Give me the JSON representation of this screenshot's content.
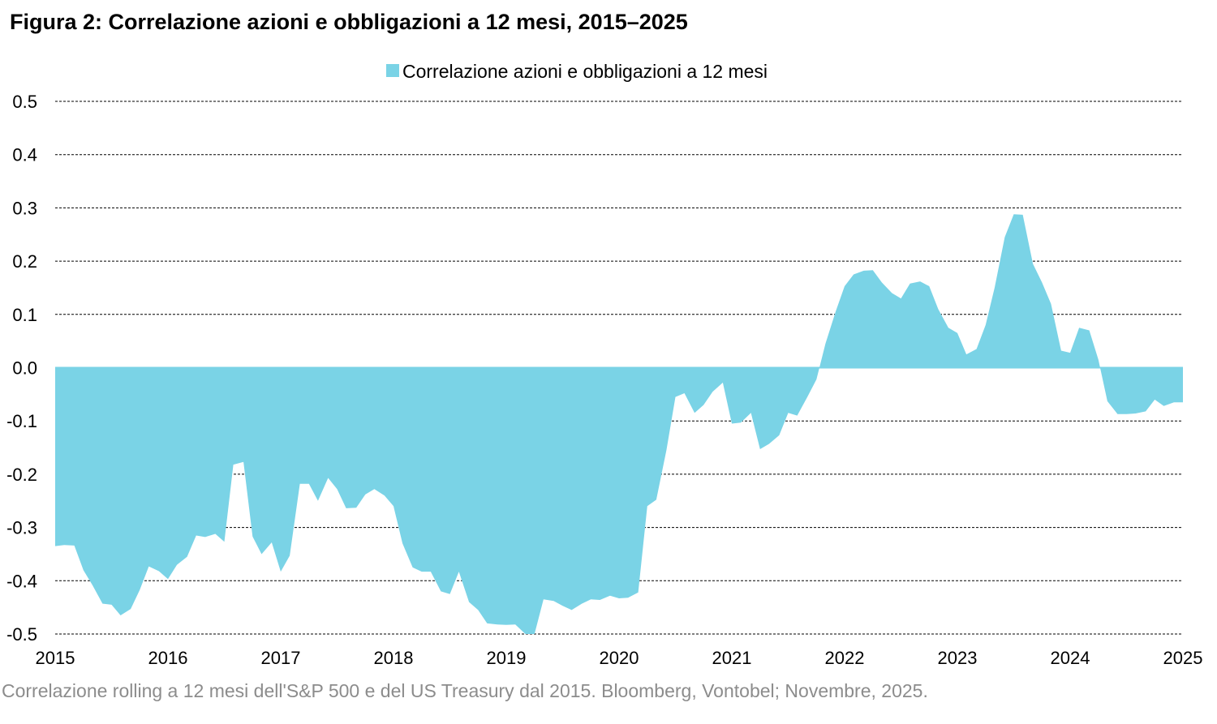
{
  "title": "Figura 2: Correlazione azioni e obbligazioni a 12 mesi, 2015–2025",
  "source": "Correlazione rolling a 12 mesi dell'S&P 500 e del US Treasury dal 2015. Bloomberg, Vontobel; Novembre, 2025.",
  "colors": {
    "area": "#7ad3e6",
    "grid": "#000000"
  },
  "chart_data": {
    "type": "area",
    "title": "Figura 2: Correlazione azioni e obbligazioni a 12 mesi, 2015–2025",
    "xlabel": "",
    "ylabel": "",
    "xlim": [
      2015,
      2025
    ],
    "ylim": [
      -0.5,
      0.5
    ],
    "x_ticks": [
      "2015",
      "2016",
      "2017",
      "2018",
      "2019",
      "2020",
      "2021",
      "2022",
      "2023",
      "2024",
      "2025"
    ],
    "y_ticks": [
      "0.5",
      "0.4",
      "0.3",
      "0.2",
      "0.1",
      "0.0",
      "-0.1",
      "-0.2",
      "-0.3",
      "-0.4",
      "-0.5"
    ],
    "grid": "horizontal dashed",
    "legend_position": "top-center",
    "series": [
      {
        "name": "Correlazione azioni e obbligazioni a 12 mesi",
        "x": [
          2015.0,
          2015.08,
          2015.17,
          2015.25,
          2015.33,
          2015.42,
          2015.5,
          2015.58,
          2015.67,
          2015.75,
          2015.83,
          2015.92,
          2016.0,
          2016.08,
          2016.17,
          2016.25,
          2016.33,
          2016.42,
          2016.5,
          2016.58,
          2016.67,
          2016.75,
          2016.83,
          2016.92,
          2017.0,
          2017.08,
          2017.17,
          2017.25,
          2017.33,
          2017.42,
          2017.5,
          2017.58,
          2017.67,
          2017.75,
          2017.83,
          2017.92,
          2018.0,
          2018.08,
          2018.17,
          2018.25,
          2018.33,
          2018.42,
          2018.5,
          2018.58,
          2018.67,
          2018.75,
          2018.83,
          2018.92,
          2019.0,
          2019.08,
          2019.17,
          2019.25,
          2019.33,
          2019.42,
          2019.5,
          2019.58,
          2019.67,
          2019.75,
          2019.83,
          2019.92,
          2020.0,
          2020.08,
          2020.17,
          2020.25,
          2020.33,
          2020.42,
          2020.5,
          2020.58,
          2020.67,
          2020.75,
          2020.83,
          2020.92,
          2021.0,
          2021.08,
          2021.17,
          2021.25,
          2021.33,
          2021.42,
          2021.5,
          2021.58,
          2021.67,
          2021.75,
          2021.83,
          2021.92,
          2022.0,
          2022.08,
          2022.17,
          2022.25,
          2022.33,
          2022.42,
          2022.5,
          2022.58,
          2022.67,
          2022.75,
          2022.83,
          2022.92,
          2023.0,
          2023.08,
          2023.17,
          2023.25,
          2023.33,
          2023.42,
          2023.5,
          2023.58,
          2023.67,
          2023.75,
          2023.83,
          2023.92,
          2024.0,
          2024.08,
          2024.17,
          2024.25,
          2024.33,
          2024.42,
          2024.5,
          2024.58,
          2024.67,
          2024.75,
          2024.83,
          2024.92,
          2025.0
        ],
        "values": [
          -0.335,
          -0.333,
          -0.334,
          -0.38,
          -0.408,
          -0.443,
          -0.445,
          -0.465,
          -0.453,
          -0.417,
          -0.373,
          -0.382,
          -0.397,
          -0.37,
          -0.355,
          -0.315,
          -0.318,
          -0.312,
          -0.327,
          -0.182,
          -0.177,
          -0.317,
          -0.35,
          -0.328,
          -0.383,
          -0.353,
          -0.218,
          -0.218,
          -0.25,
          -0.207,
          -0.228,
          -0.264,
          -0.263,
          -0.238,
          -0.228,
          -0.24,
          -0.26,
          -0.33,
          -0.375,
          -0.383,
          -0.383,
          -0.42,
          -0.425,
          -0.383,
          -0.44,
          -0.455,
          -0.48,
          -0.482,
          -0.483,
          -0.482,
          -0.505,
          -0.502,
          -0.435,
          -0.438,
          -0.447,
          -0.455,
          -0.443,
          -0.435,
          -0.436,
          -0.428,
          -0.433,
          -0.432,
          -0.422,
          -0.26,
          -0.248,
          -0.155,
          -0.055,
          -0.048,
          -0.085,
          -0.07,
          -0.045,
          -0.028,
          -0.105,
          -0.103,
          -0.085,
          -0.153,
          -0.143,
          -0.127,
          -0.085,
          -0.09,
          -0.055,
          -0.022,
          0.045,
          0.105,
          0.153,
          0.175,
          0.182,
          0.183,
          0.16,
          0.14,
          0.13,
          0.158,
          0.162,
          0.153,
          0.11,
          0.075,
          0.065,
          0.025,
          0.035,
          0.08,
          0.15,
          0.245,
          0.288,
          0.287,
          0.195,
          0.16,
          0.12,
          0.032,
          0.028,
          0.075,
          0.07,
          0.015,
          -0.063,
          -0.087,
          -0.087,
          -0.086,
          -0.082,
          -0.06,
          -0.072,
          -0.065,
          -0.065
        ]
      }
    ]
  }
}
